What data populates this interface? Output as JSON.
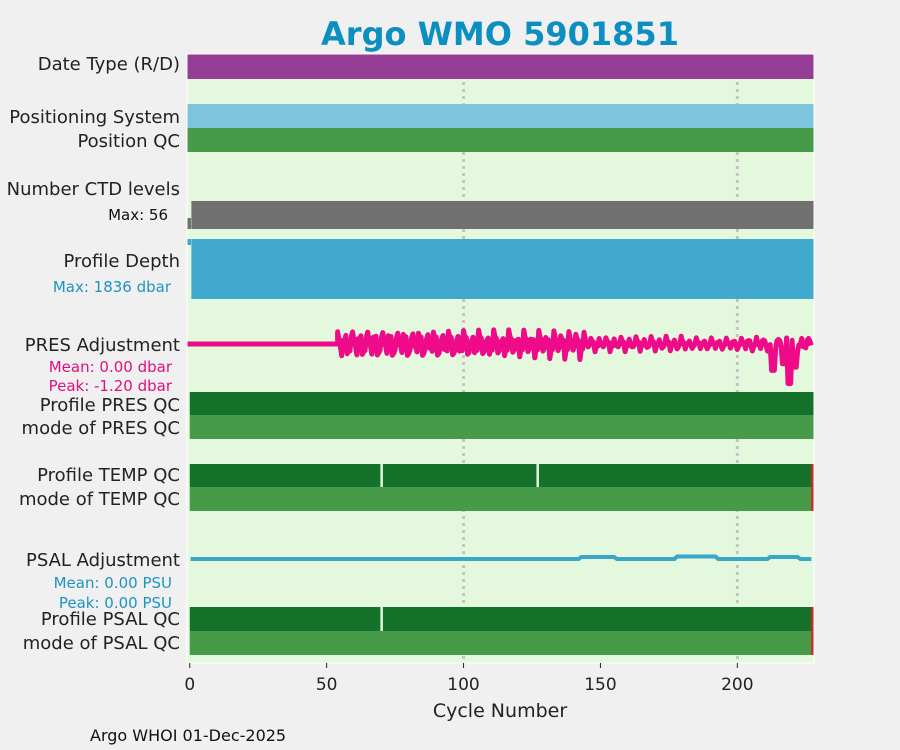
{
  "title": "Argo WMO 5901851",
  "footer": "Argo WHOI 01-Dec-2025",
  "colors": {
    "background": "#f0f0f0",
    "plot_bg": "#e4f8dd",
    "grid": "#c4c4c4",
    "title": "#0a8fc0",
    "date_type": "#963e96",
    "positioning": "#7ec4de",
    "qc_light": "#479a47",
    "qc_dark": "#14722a",
    "qc_bad": "#dd2222",
    "ctd": "#717171",
    "depth": "#41a8ce",
    "pres_adj": "#ee0a88",
    "psal_adj": "#3aa6c9",
    "pres_text": "#e0107f",
    "psal_text": "#1e93c3"
  },
  "rows": {
    "date_type": "Date Type (R/D)",
    "positioning": "Positioning System",
    "position_qc": "Position QC",
    "ctd_levels": "Number CTD levels",
    "ctd_max": "Max: 56",
    "profile_depth": "Profile Depth",
    "depth_max": "Max: 1836 dbar",
    "pres_adj": "PRES Adjustment",
    "pres_mean": "Mean: 0.00 dbar",
    "pres_peak": "Peak: -1.20 dbar",
    "profile_pres_qc": "Profile PRES QC",
    "mode_pres_qc": "mode of PRES QC",
    "profile_temp_qc": "Profile TEMP QC",
    "mode_temp_qc": "mode of TEMP QC",
    "psal_adj": "PSAL Adjustment",
    "psal_mean": "Mean: 0.00 PSU",
    "psal_peak": "Peak: 0.00 PSU",
    "profile_psal_qc": "Profile PSAL QC",
    "mode_psal_qc": "mode of PSAL QC"
  },
  "chart_data": {
    "type": "bar",
    "xlabel": "Cycle Number",
    "xlim": [
      -1,
      228
    ],
    "xticks": [
      0,
      50,
      100,
      150,
      200
    ],
    "grid_x": [
      100,
      200
    ],
    "grid_style": "dotted vertical",
    "last_cycle": 227,
    "ctd_levels_max": 56,
    "profile_depth_max_dbar": 1836,
    "pres_adjustment": {
      "mean_dbar": 0.0,
      "peak_dbar": -1.2,
      "zero_until_cycle": 54,
      "anomaly_cycles": [
        [
          213,
          -0.8
        ],
        [
          217,
          -0.6
        ],
        [
          219,
          -1.2
        ],
        [
          221,
          -0.7
        ]
      ]
    },
    "psal_adjustment": {
      "mean_psu": 0.0,
      "peak_psu": 0.0
    },
    "temp_qc_gaps": [
      70,
      127
    ],
    "psal_qc_gaps": [
      70
    ],
    "bad_qc_cycles": [
      227
    ]
  }
}
